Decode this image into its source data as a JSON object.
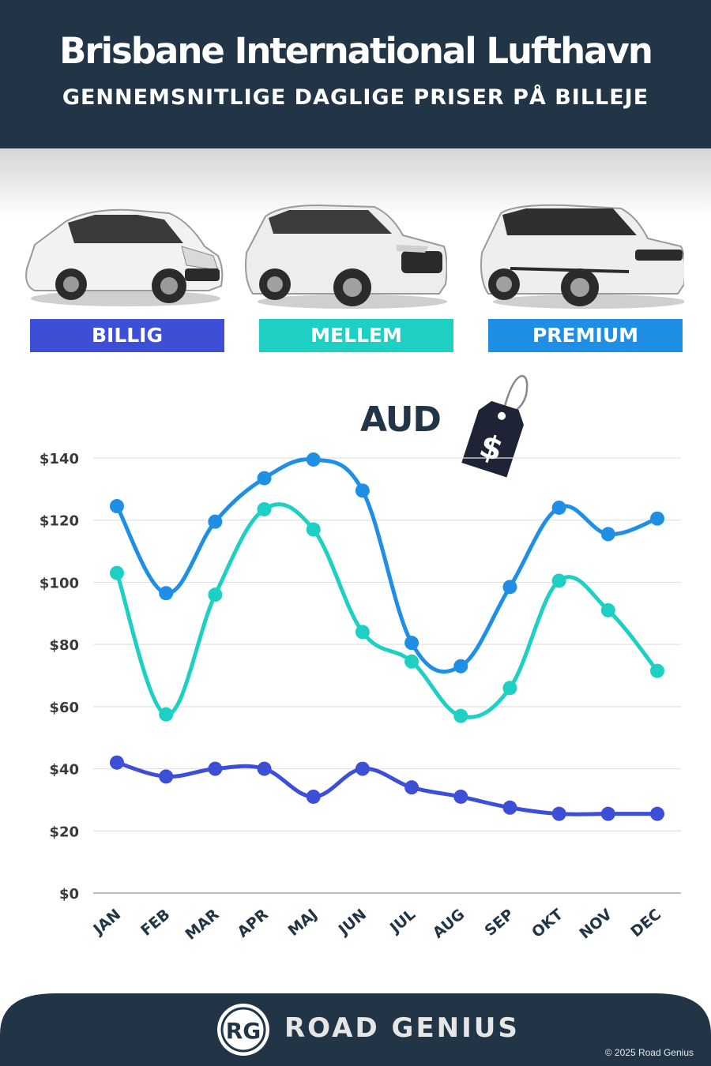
{
  "header": {
    "title": "Brisbane International Lufthavn",
    "subtitle": "GENNEMSNITLIGE DAGLIGE PRISER PÅ BILLEJE"
  },
  "categories": [
    {
      "label": "BILLIG",
      "color": "#3d4fd6"
    },
    {
      "label": "MELLEM",
      "color": "#1ecfc4"
    },
    {
      "label": "PREMIUM",
      "color": "#1e8fe5"
    }
  ],
  "currency": {
    "label": "AUD",
    "tag_symbol": "$"
  },
  "chart_data": {
    "type": "line",
    "x": [
      "JAN",
      "FEB",
      "MAR",
      "APR",
      "MAJ",
      "JUN",
      "JUL",
      "AUG",
      "SEP",
      "OKT",
      "NOV",
      "DEC"
    ],
    "yticks": [
      "$0",
      "$20",
      "$40",
      "$60",
      "$80",
      "$100",
      "$120",
      "$140"
    ],
    "ylim": [
      0,
      140
    ],
    "grid": true,
    "series": [
      {
        "name": "PREMIUM",
        "color": "#1e8fe5",
        "values": [
          124.5,
          96.5,
          119.5,
          133.5,
          139.5,
          129.5,
          80.5,
          73,
          98.5,
          124,
          115.5,
          120.5
        ]
      },
      {
        "name": "MELLEM",
        "color": "#1ecfc4",
        "values": [
          103,
          57.5,
          96,
          123.5,
          117,
          84,
          74.5,
          57,
          66,
          100.5,
          91,
          71.5
        ]
      },
      {
        "name": "BILLIG",
        "color": "#3d4fd6",
        "values": [
          42,
          37.5,
          40,
          40,
          31,
          40,
          34,
          31,
          27.5,
          25.5,
          25.5,
          25.5
        ]
      }
    ]
  },
  "footer": {
    "logo_text": "RG",
    "brand": "ROAD GENIUS",
    "copyright": "© 2025 Road Genius"
  }
}
